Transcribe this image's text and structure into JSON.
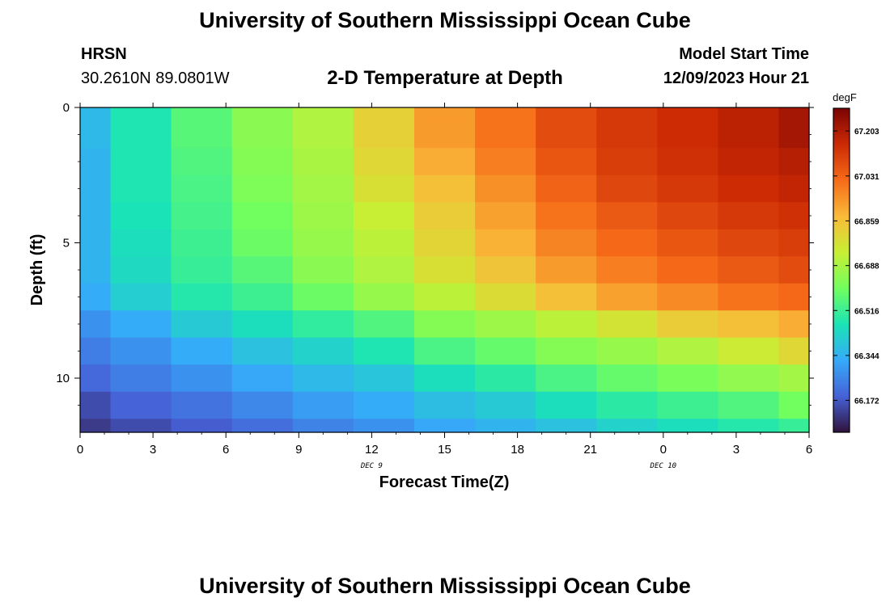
{
  "header": {
    "title": "University of Southern Mississippi Ocean Cube",
    "station": "HRSN",
    "coords": "30.2610N  89.0801W",
    "subtitle": "2-D Temperature at Depth",
    "model_label": "Model Start Time",
    "model_time": "12/09/2023 Hour 21"
  },
  "footer": {
    "title": "University of Southern Mississippi Ocean Cube"
  },
  "chart_data": {
    "type": "heatmap",
    "title": "2-D Temperature at Depth",
    "xlabel": "Forecast Time(Z)",
    "ylabel": "Depth (ft)",
    "units": "degF",
    "x_tick_labels": [
      "0",
      "3",
      "6",
      "9",
      "12",
      "15",
      "18",
      "21",
      "0",
      "3",
      "6"
    ],
    "x_date_labels": [
      {
        "hour_index": 12,
        "label": "DEC 9"
      },
      {
        "hour_index": 24,
        "label": "DEC 10"
      }
    ],
    "xlim_hours": [
      0,
      30
    ],
    "y_ticks": [
      0,
      5,
      10
    ],
    "ylim": [
      0,
      12
    ],
    "time_hours": [
      0,
      2.5,
      5,
      7.5,
      10,
      12.5,
      15,
      17.5,
      20,
      22.5,
      25,
      27.5,
      30
    ],
    "depth_ft": [
      0,
      1,
      2,
      3,
      4,
      5,
      6,
      7,
      8,
      9,
      10,
      11,
      12
    ],
    "values": [
      [
        66.36,
        66.47,
        66.56,
        66.64,
        66.7,
        66.82,
        66.93,
        67.0,
        67.08,
        67.12,
        67.15,
        67.18,
        67.22
      ],
      [
        66.36,
        66.47,
        66.56,
        66.64,
        66.7,
        66.82,
        66.93,
        67.0,
        67.08,
        67.12,
        67.15,
        67.18,
        67.22
      ],
      [
        66.35,
        66.47,
        66.55,
        66.63,
        66.69,
        66.8,
        66.9,
        66.98,
        67.06,
        67.11,
        67.14,
        67.17,
        67.19
      ],
      [
        66.35,
        66.47,
        66.54,
        66.62,
        66.68,
        66.78,
        66.86,
        66.95,
        67.03,
        67.09,
        67.12,
        67.15,
        67.17
      ],
      [
        66.35,
        66.46,
        66.53,
        66.6,
        66.67,
        66.74,
        66.83,
        66.92,
        67.0,
        67.05,
        67.09,
        67.12,
        67.14
      ],
      [
        66.35,
        66.45,
        66.52,
        66.59,
        66.66,
        66.72,
        66.81,
        66.89,
        66.97,
        67.02,
        67.06,
        67.09,
        67.11
      ],
      [
        66.35,
        66.44,
        66.51,
        66.56,
        66.64,
        66.7,
        66.78,
        66.85,
        66.93,
        66.98,
        67.02,
        67.05,
        67.08
      ],
      [
        66.33,
        66.41,
        66.48,
        66.52,
        66.59,
        66.66,
        66.72,
        66.79,
        66.86,
        66.92,
        66.96,
        67.0,
        67.02
      ],
      [
        66.28,
        66.33,
        66.4,
        66.45,
        66.5,
        66.55,
        66.63,
        66.67,
        66.72,
        66.77,
        66.83,
        66.86,
        66.9
      ],
      [
        66.24,
        66.28,
        66.33,
        66.38,
        66.42,
        66.47,
        66.54,
        66.58,
        66.63,
        66.66,
        66.7,
        66.75,
        66.8
      ],
      [
        66.2,
        66.24,
        66.28,
        66.32,
        66.36,
        66.39,
        66.45,
        66.49,
        66.54,
        66.58,
        66.61,
        66.65,
        66.68
      ],
      [
        66.15,
        66.19,
        66.22,
        66.26,
        66.3,
        66.33,
        66.37,
        66.4,
        66.45,
        66.49,
        66.52,
        66.55,
        66.6
      ],
      [
        66.12,
        66.15,
        66.18,
        66.21,
        66.25,
        66.28,
        66.32,
        66.35,
        66.38,
        66.42,
        66.45,
        66.48,
        66.51
      ]
    ],
    "colorbar": {
      "min": 66.05,
      "max": 67.29,
      "tick_labels": [
        "67.203",
        "67.031",
        "66.859",
        "66.688",
        "66.516",
        "66.344",
        "66.172"
      ],
      "tick_values": [
        67.203,
        67.031,
        66.859,
        66.688,
        66.516,
        66.344,
        66.172
      ],
      "colors": [
        "#30123b",
        "#4662d7",
        "#36aaf9",
        "#1ae4b6",
        "#72fe5e",
        "#c8ef34",
        "#faba39",
        "#f66b19",
        "#cb2a04",
        "#7a0403"
      ]
    },
    "grid": false
  }
}
